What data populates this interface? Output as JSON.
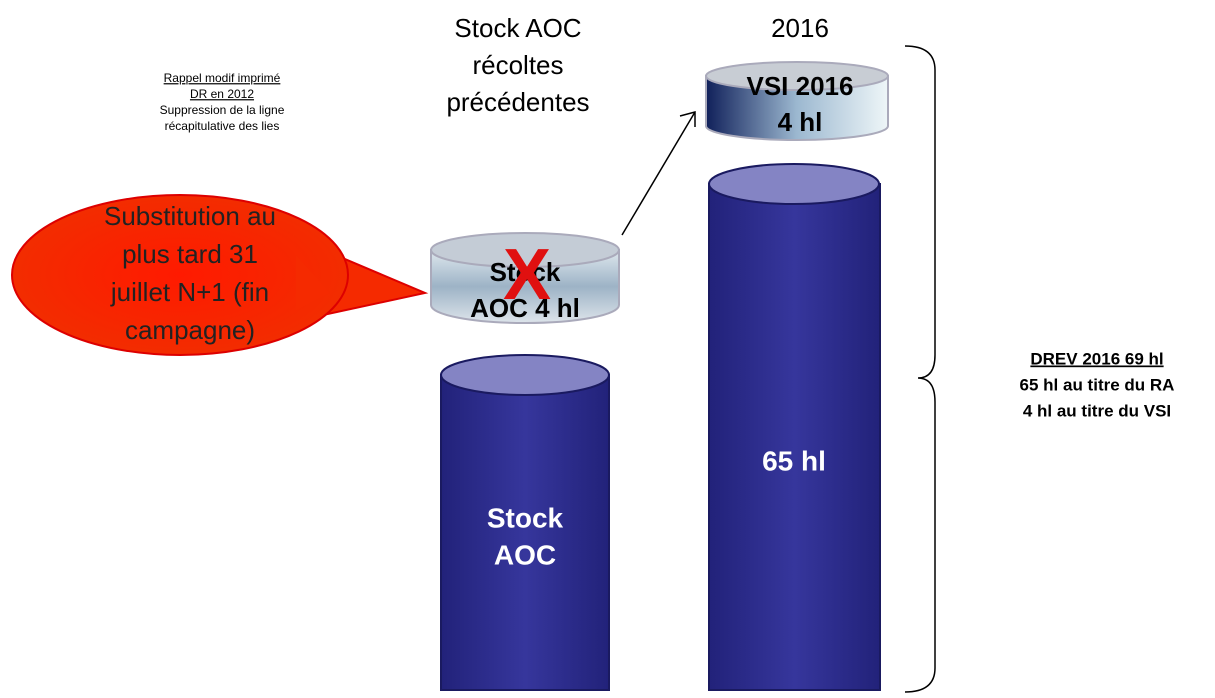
{
  "note": [
    "Rappel modif imprimé",
    "DR en 2012",
    "Suppression de la ligne",
    "récapitulative des lies"
  ],
  "left_header": [
    "Stock AOC",
    "récoltes",
    "précédentes"
  ],
  "right_header": "2016",
  "callout": [
    "Substitution au",
    "plus tard 31",
    "juillet N+1 (fin",
    "campagne)"
  ],
  "left_disc": [
    "Stock",
    "AOC 4 hl"
  ],
  "cross": "X",
  "left_cylinder": [
    "Stock",
    "AOC"
  ],
  "right_disc": [
    "VSI 2016",
    "4 hl"
  ],
  "right_cylinder": "65 hl",
  "summary": [
    "DREV 2016 69 hl",
    "65 hl au titre du RA",
    "4 hl au titre du VSI"
  ]
}
